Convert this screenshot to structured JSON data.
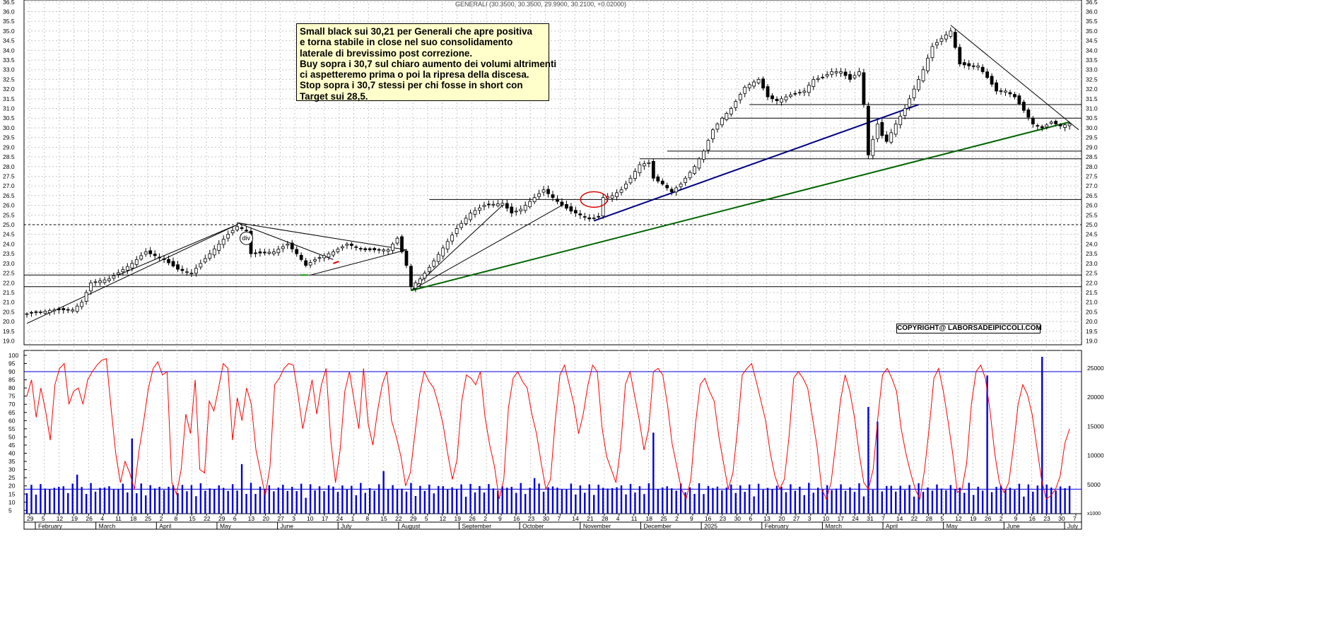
{
  "header": {
    "title": "GENERALI (30.3500, 30.3500, 29.9900, 30.2100, +0.02000)"
  },
  "annotation": {
    "lines": [
      "Small black sui 30,21 per Generali che apre positiva",
      "e torna stabile in close nel suo consolidamento",
      "laterale di brevissimo post correzione.",
      "Buy sopra i 30,7 sul chiaro aumento dei volumi altrimenti",
      "ci aspetteremo prima o poi la ripresa della discesa.",
      "Stop sopra i 30,7 stessi per chi fosse in short con",
      "Target sui 28,5."
    ]
  },
  "copyright": "COPYRIGHT@ LABORSADEIPICCOLI.COM",
  "chart_marks": {
    "div_label": "div",
    "volume_unit": "x1000"
  },
  "colors": {
    "price_line": "#000000",
    "rsi": "#ff0000",
    "volume": "#0000dd",
    "trend_blue": "#000080",
    "trend_green": "#006400",
    "circle": "#dd0000"
  },
  "chart_data": [
    {
      "type": "candlestick",
      "title": "GENERALI (30.3500, 30.3500, 29.9900, 30.2100, +0.02000)",
      "ylim": [
        18.8,
        36.6
      ],
      "y_ticks": [
        "36.5",
        "36.0",
        "35.5",
        "35.0",
        "34.5",
        "34.0",
        "33.5",
        "33.0",
        "32.5",
        "32.0",
        "31.5",
        "31.0",
        "30.5",
        "30.0",
        "29.5",
        "29.0",
        "28.5",
        "28.0",
        "27.5",
        "27.0",
        "26.5",
        "26.0",
        "25.5",
        "25.0",
        "24.5",
        "24.0",
        "23.5",
        "23.0",
        "22.5",
        "22.0",
        "21.5",
        "21.0",
        "20.5",
        "20.0",
        "19.5",
        "19.0"
      ],
      "x_day_ticks": [
        "29",
        "5",
        "12",
        "19",
        "26",
        "4",
        "11",
        "18",
        "25",
        "2",
        "8",
        "15",
        "22",
        "29",
        "6",
        "13",
        "20",
        "27",
        "3",
        "10",
        "17",
        "24",
        "1",
        "8",
        "15",
        "22",
        "29",
        "5",
        "12",
        "19",
        "26",
        "2",
        "9",
        "16",
        "23",
        "30",
        "7",
        "14",
        "21",
        "28",
        "4",
        "11",
        "18",
        "25",
        "2",
        "9",
        "16",
        "23",
        "30",
        "6",
        "13",
        "20",
        "27",
        "3",
        "10",
        "17",
        "24",
        "31",
        "7",
        "14",
        "22",
        "28",
        "5",
        "12",
        "19",
        "26",
        "2",
        "9",
        "16",
        "23",
        "30",
        "7"
      ],
      "x_month_labels": [
        "February",
        "March",
        "April",
        "May",
        "June",
        "July",
        "August",
        "September",
        "October",
        "November",
        "December",
        "2025",
        "February",
        "March",
        "April",
        "May",
        "June",
        "July"
      ],
      "price_path": [
        [
          0,
          20.4
        ],
        [
          6,
          20.6
        ],
        [
          10,
          20.6
        ],
        [
          12,
          21.0
        ],
        [
          14,
          22.0
        ],
        [
          18,
          22.2
        ],
        [
          23,
          23.0
        ],
        [
          26,
          23.6
        ],
        [
          30,
          23.2
        ],
        [
          33,
          22.7
        ],
        [
          36,
          22.5
        ],
        [
          40,
          23.5
        ],
        [
          44,
          24.5
        ],
        [
          46,
          24.9
        ],
        [
          48,
          24.7
        ],
        [
          49,
          23.5
        ],
        [
          54,
          23.6
        ],
        [
          57,
          24.0
        ],
        [
          59,
          23.5
        ],
        [
          61,
          22.9
        ],
        [
          63,
          23.2
        ],
        [
          67,
          23.6
        ],
        [
          70,
          24.0
        ],
        [
          74,
          23.7
        ],
        [
          79,
          23.7
        ],
        [
          81,
          24.3
        ],
        [
          83,
          22.9
        ],
        [
          84,
          21.8
        ],
        [
          86,
          22.2
        ],
        [
          88,
          22.8
        ],
        [
          91,
          23.8
        ],
        [
          94,
          24.8
        ],
        [
          97,
          25.6
        ],
        [
          100,
          26.0
        ],
        [
          104,
          26.1
        ],
        [
          106,
          25.6
        ],
        [
          108,
          25.8
        ],
        [
          110,
          26.2
        ],
        [
          113,
          26.8
        ],
        [
          115,
          26.4
        ],
        [
          117,
          26.0
        ],
        [
          119,
          25.7
        ],
        [
          121,
          25.5
        ],
        [
          123,
          25.3
        ],
        [
          125,
          25.4
        ],
        [
          126,
          26.4
        ],
        [
          128,
          26.5
        ],
        [
          130,
          26.8
        ],
        [
          132,
          27.4
        ],
        [
          134,
          28.1
        ],
        [
          136,
          28.2
        ],
        [
          137,
          27.4
        ],
        [
          139,
          27.1
        ],
        [
          141,
          26.7
        ],
        [
          143,
          27.1
        ],
        [
          146,
          28.0
        ],
        [
          148,
          28.8
        ],
        [
          150,
          29.9
        ],
        [
          152,
          30.5
        ],
        [
          154,
          31.0
        ],
        [
          157,
          32.1
        ],
        [
          160,
          32.5
        ],
        [
          162,
          31.6
        ],
        [
          164,
          31.4
        ],
        [
          167,
          31.7
        ],
        [
          170,
          31.9
        ],
        [
          172,
          32.5
        ],
        [
          174,
          32.6
        ],
        [
          176,
          32.9
        ],
        [
          178,
          32.9
        ],
        [
          180,
          32.5
        ],
        [
          182,
          32.9
        ],
        [
          183,
          31.2
        ],
        [
          184,
          28.6
        ],
        [
          185,
          29.4
        ],
        [
          186,
          30.2
        ],
        [
          187,
          29.6
        ],
        [
          188,
          29.3
        ],
        [
          190,
          30.2
        ],
        [
          192,
          31.0
        ],
        [
          194,
          32.0
        ],
        [
          196,
          33.0
        ],
        [
          198,
          34.2
        ],
        [
          200,
          34.6
        ],
        [
          202,
          35.0
        ],
        [
          204,
          33.3
        ],
        [
          206,
          33.2
        ],
        [
          208,
          33.2
        ],
        [
          210,
          32.6
        ],
        [
          212,
          31.9
        ],
        [
          214,
          31.9
        ],
        [
          216,
          31.6
        ],
        [
          218,
          30.9
        ],
        [
          220,
          30.2
        ],
        [
          222,
          30.0
        ],
        [
          224,
          30.3
        ],
        [
          226,
          30.1
        ],
        [
          228,
          30.21
        ]
      ],
      "horizontal_levels": [
        31.2,
        30.5,
        28.8,
        28.4,
        26.3,
        25.0,
        22.4,
        21.8,
        18.8
      ],
      "trendlines": [
        {
          "color": "black",
          "points": [
            [
              0,
              19.9
            ],
            [
              46,
              25.0
            ]
          ]
        },
        {
          "color": "black",
          "points": [
            [
              20,
              22.4
            ],
            [
              46,
              25.0
            ]
          ]
        },
        {
          "color": "black",
          "points": [
            [
              46,
              25.1
            ],
            [
              83,
              23.7
            ]
          ]
        },
        {
          "color": "black",
          "points": [
            [
              46,
              25.1
            ],
            [
              67,
              23.2
            ]
          ]
        },
        {
          "color": "black",
          "points": [
            [
              62,
              22.4
            ],
            [
              83,
              23.7
            ]
          ]
        },
        {
          "color": "black",
          "points": [
            [
              84,
              21.6
            ],
            [
              104,
              26.0
            ]
          ]
        },
        {
          "color": "black",
          "points": [
            [
              84,
              21.6
            ],
            [
              117,
              26.0
            ]
          ]
        },
        {
          "color": "blue",
          "points": [
            [
              124,
              25.2
            ],
            [
              195,
              31.2
            ]
          ]
        },
        {
          "color": "green",
          "points": [
            [
              84,
              21.6
            ],
            [
              228,
              30.3
            ]
          ]
        },
        {
          "color": "black",
          "points": [
            [
              202,
              35.3
            ],
            [
              230,
              29.9
            ]
          ]
        }
      ],
      "highlight_circle_at": [
        124,
        26.3
      ],
      "div_marker_at": [
        48,
        24.3
      ]
    },
    {
      "type": "line",
      "name": "RSI",
      "ylim": [
        3,
        103
      ],
      "y_ticks": [
        "100",
        "95",
        "90",
        "85",
        "80",
        "75",
        "70",
        "65",
        "60",
        "55",
        "50",
        "45",
        "40",
        "35",
        "30",
        "25",
        "20",
        "15",
        "10",
        "5"
      ],
      "reference_level": 90,
      "values": [
        75,
        85,
        62,
        80,
        66,
        48,
        82,
        92,
        95,
        70,
        78,
        80,
        70,
        85,
        90,
        94,
        97,
        98,
        68,
        40,
        22,
        35,
        28,
        18,
        42,
        60,
        80,
        92,
        96,
        88,
        90,
        22,
        15,
        30,
        64,
        52,
        85,
        30,
        28,
        72,
        66,
        80,
        95,
        92,
        48,
        74,
        60,
        80,
        70,
        42,
        28,
        14,
        32,
        82,
        86,
        92,
        95,
        94,
        76,
        55,
        70,
        85,
        64,
        82,
        92,
        48,
        22,
        42,
        78,
        90,
        72,
        55,
        92,
        58,
        45,
        66,
        82,
        90,
        60,
        50,
        38,
        20,
        28,
        52,
        76,
        90,
        84,
        80,
        70,
        58,
        40,
        24,
        36,
        72,
        88,
        86,
        82,
        90,
        62,
        45,
        32,
        12,
        24,
        68,
        86,
        90,
        84,
        80,
        64,
        52,
        34,
        18,
        24,
        60,
        88,
        94,
        82,
        70,
        52,
        64,
        82,
        94,
        90,
        56,
        38,
        30,
        22,
        44,
        82,
        90,
        75,
        60,
        42,
        55,
        90,
        92,
        88,
        70,
        46,
        32,
        18,
        12,
        24,
        58,
        82,
        86,
        78,
        72,
        50,
        34,
        18,
        28,
        55,
        88,
        92,
        95,
        84,
        72,
        60,
        40,
        26,
        18,
        24,
        50,
        86,
        90,
        86,
        80,
        62,
        44,
        18,
        12,
        22,
        46,
        72,
        88,
        78,
        62,
        40,
        22,
        18,
        30,
        62,
        88,
        92,
        86,
        78,
        55,
        40,
        28,
        18,
        12,
        30,
        56,
        86,
        92,
        78,
        60,
        40,
        16,
        18,
        34,
        70,
        90,
        94,
        86,
        66,
        40,
        22,
        16,
        22,
        44,
        70,
        82,
        76,
        64,
        44,
        24,
        12,
        14,
        18,
        26,
        46,
        55
      ],
      "volume_ylim": [
        0,
        28000
      ],
      "volume_ticks": [
        "25000",
        "20000",
        "15000",
        "10000",
        "5000"
      ],
      "volume_reference": 4200,
      "volume_spikes": [
        [
          11,
          6700
        ],
        [
          23,
          12900
        ],
        [
          47,
          8500
        ],
        [
          78,
          7300
        ],
        [
          111,
          6100
        ],
        [
          137,
          13900
        ],
        [
          186,
          15800
        ],
        [
          184,
          18300
        ],
        [
          210,
          23700
        ],
        [
          222,
          26900
        ]
      ]
    }
  ]
}
